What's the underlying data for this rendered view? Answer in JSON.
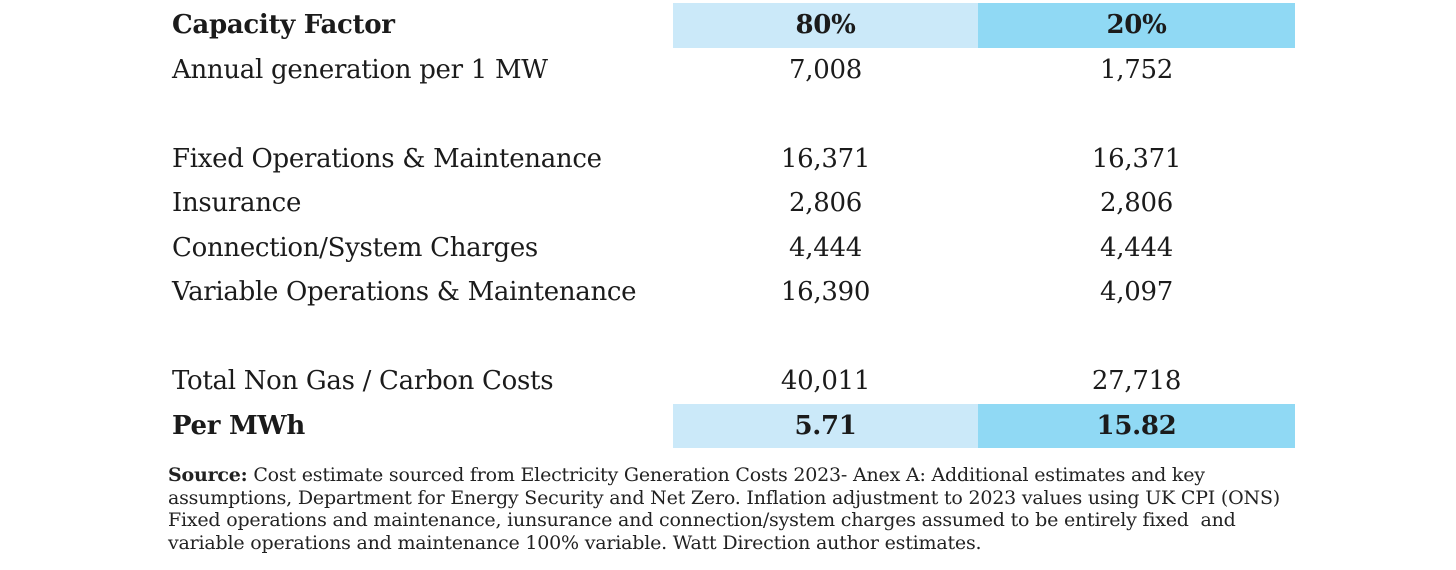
{
  "colors": {
    "col80_header_bg": "#cbe9f9",
    "col20_header_bg": "#90d9f4",
    "text": "#1b1b1b"
  },
  "table": {
    "header": {
      "label": "Capacity Factor",
      "col80": "80%",
      "col20": "20%"
    },
    "rows": [
      {
        "label": "Annual generation per 1 MW",
        "v80": "7,008",
        "v20": "1,752"
      },
      {
        "label": "",
        "v80": "",
        "v20": ""
      },
      {
        "label": "Fixed Operations & Maintenance",
        "v80": "16,371",
        "v20": "16,371"
      },
      {
        "label": "Insurance",
        "v80": "2,806",
        "v20": "2,806"
      },
      {
        "label": "Connection/System Charges",
        "v80": "4,444",
        "v20": "4,444"
      },
      {
        "label": "Variable Operations & Maintenance",
        "v80": "16,390",
        "v20": "4,097"
      },
      {
        "label": "",
        "v80": "",
        "v20": ""
      },
      {
        "label": "Total Non Gas / Carbon Costs",
        "v80": "40,011",
        "v20": "27,718"
      }
    ],
    "per_mwh": {
      "label": "Per MWh",
      "v80": "5.71",
      "v20": "15.82"
    }
  },
  "source": {
    "prefix": "Source:",
    "line1": " Cost estimate sourced from Electricity Generation Costs 2023- Anex A: Additional estimates and key",
    "line2": "assumptions, Department for Energy Security and Net Zero. Inflation adjustment to 2023 values using UK CPI (ONS)",
    "line3": "Fixed operations and maintenance, iunsurance and connection/system charges assumed to be entirely fixed  and",
    "line4": "variable operations and maintenance 100% variable. Watt Direction author estimates."
  },
  "chart_data": {
    "type": "table",
    "title": "Capacity Factor",
    "columns": [
      "Capacity Factor",
      "80%",
      "20%"
    ],
    "rows": [
      [
        "Annual generation per 1 MW",
        7008,
        1752
      ],
      [
        "Fixed Operations & Maintenance",
        16371,
        16371
      ],
      [
        "Insurance",
        2806,
        2806
      ],
      [
        "Connection/System Charges",
        4444,
        4444
      ],
      [
        "Variable Operations & Maintenance",
        16390,
        4097
      ],
      [
        "Total Non Gas / Carbon Costs",
        40011,
        27718
      ],
      [
        "Per MWh",
        5.71,
        15.82
      ]
    ],
    "highlighted_rows": [
      "Capacity Factor",
      "Per MWh"
    ],
    "highlight_colors": {
      "80%": "#cbe9f9",
      "20%": "#90d9f4"
    }
  }
}
